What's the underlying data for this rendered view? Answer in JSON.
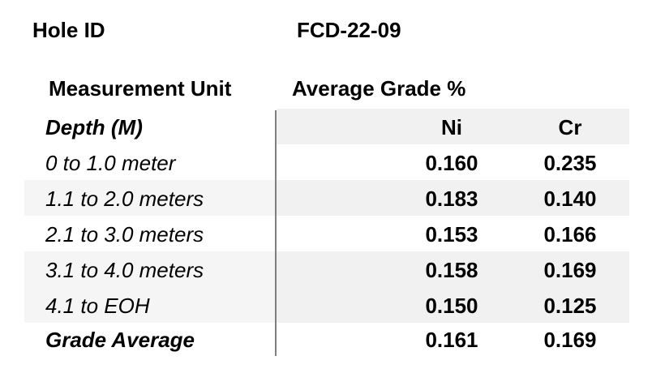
{
  "header": {
    "hole_label": "Hole ID",
    "hole_value": "FCD-22-09",
    "unit_heading": "Measurement Unit",
    "grade_heading": "Average Grade %"
  },
  "table": {
    "depth_heading": "Depth (M)",
    "columns": [
      "Ni",
      "Cr"
    ],
    "rows": [
      {
        "label": "0 to 1.0 meter",
        "ni": "0.160",
        "cr": "0.235"
      },
      {
        "label": "1.1 to 2.0 meters",
        "ni": "0.183",
        "cr": "0.140"
      },
      {
        "label": "2.1 to 3.0 meters",
        "ni": "0.153",
        "cr": "0.166"
      },
      {
        "label": "3.1 to 4.0 meters",
        "ni": "0.158",
        "cr": "0.169"
      },
      {
        "label": "4.1 to EOH",
        "ni": "0.150",
        "cr": "0.125"
      }
    ],
    "average": {
      "label": "Grade Average",
      "ni": "0.161",
      "cr": "0.169"
    }
  }
}
